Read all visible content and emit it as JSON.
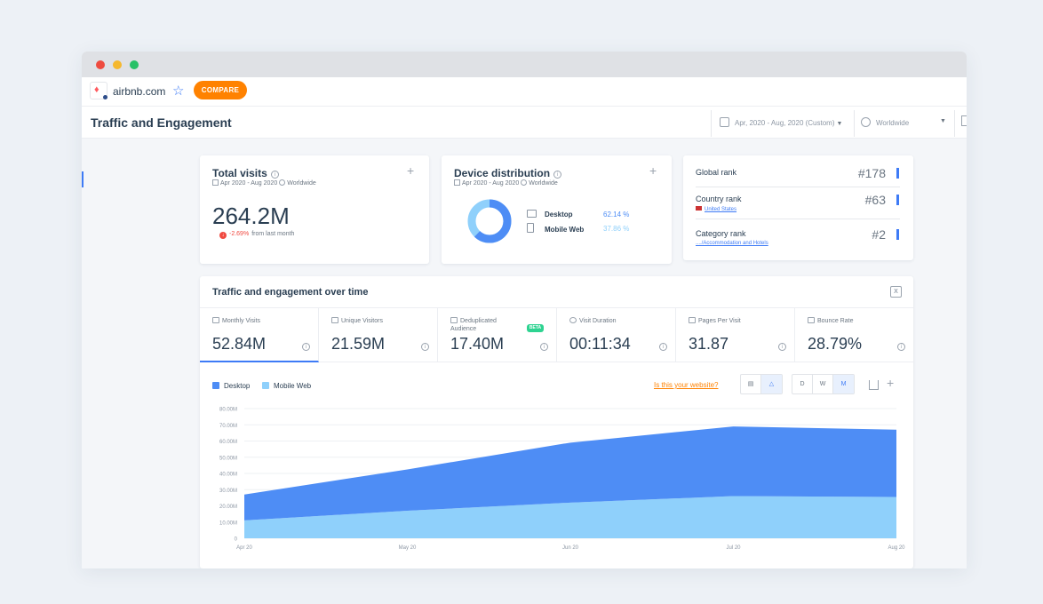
{
  "window": {
    "site": "airbnb.com",
    "compare_label": "COMPARE",
    "page_title": "Traffic and Engagement",
    "date_range": "Apr, 2020 - Aug, 2020 (Custom)",
    "geo": "Worldwide"
  },
  "total_visits": {
    "title": "Total visits",
    "period": "Apr 2020 - Aug 2020",
    "geo": "Worldwide",
    "value": "264.2M",
    "change_pct": "-2.69%",
    "change_text": "from last month"
  },
  "device": {
    "title": "Device distribution",
    "period": "Apr 2020 - Aug 2020",
    "geo": "Worldwide",
    "desktop_label": "Desktop",
    "desktop_pct": "62.14 %",
    "mobile_label": "Mobile Web",
    "mobile_pct": "37.86 %",
    "desktop_share": 62.14,
    "mobile_share": 37.86,
    "desktop_color": "#4e8df5",
    "mobile_color": "#8fd0fb"
  },
  "ranks": {
    "global_label": "Global rank",
    "global_value": "#178",
    "country_label": "Country rank",
    "country_sub": "United States",
    "country_value": "#63",
    "category_label": "Category rank",
    "category_sub": "..../Accommodation and Hotels",
    "category_value": "#2"
  },
  "engagement": {
    "title": "Traffic and engagement over time",
    "xls_icon": "excel-icon",
    "metrics": [
      {
        "label": "Monthly Visits",
        "value": "52.84M"
      },
      {
        "label": "Unique Visitors",
        "value": "21.59M"
      },
      {
        "label": "Deduplicated Audience",
        "value": "17.40M"
      },
      {
        "label": "Visit Duration",
        "value": "00:11:34"
      },
      {
        "label": "Pages Per Visit",
        "value": "31.87"
      },
      {
        "label": "Bounce Rate",
        "value": "28.79%"
      }
    ],
    "beta_label": "BETA",
    "legend_desktop": "Desktop",
    "legend_mobile": "Mobile Web",
    "your_site_link": "Is this your website?",
    "granularity": [
      "D",
      "W",
      "M"
    ]
  },
  "chart_data": {
    "type": "area",
    "x": [
      "Apr 20",
      "May 20",
      "Jun 20",
      "Jul 20",
      "Aug 20"
    ],
    "y_ticks": [
      "0",
      "10.00M",
      "20.00M",
      "30.00M",
      "40.00M",
      "50.00M",
      "60.00M",
      "70.00M",
      "80.00M"
    ],
    "ylim": [
      0,
      80
    ],
    "stacked": true,
    "series": [
      {
        "name": "Mobile Web",
        "values": [
          11,
          17,
          22,
          26,
          25.5
        ],
        "color": "#8fd0fb"
      },
      {
        "name": "Desktop",
        "values": [
          16,
          25.5,
          37,
          43,
          41.5
        ],
        "color": "#4e8df5"
      }
    ],
    "grid": true
  }
}
